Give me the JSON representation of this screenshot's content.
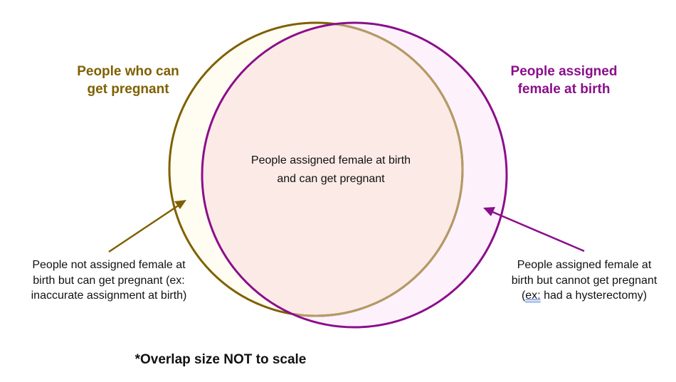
{
  "diagram": {
    "set_a": {
      "label_line1": "People who can",
      "label_line2": "get pregnant",
      "color": "#7f6000",
      "fill": "#fffdf2"
    },
    "set_b": {
      "label_line1": "People assigned",
      "label_line2": "female at birth",
      "color": "#8b0e8b",
      "fill": "#fdf2fc"
    },
    "intersection": {
      "line1": "People assigned female at birth",
      "line2": "and can get pregnant",
      "fill": "#fbeae6"
    },
    "only_a_note": {
      "line1": "People not assigned female at",
      "line2": "birth but can get pregnant (ex:",
      "line3": "inaccurate assignment at birth)"
    },
    "only_b_note": {
      "line1": "People assigned female at",
      "line2": "birth but cannot get pregnant",
      "line3_prefix": "(",
      "line3_ex": "ex:",
      "line3_rest": " had a hysterectomy)"
    },
    "footnote": "*Overlap size NOT to scale"
  }
}
